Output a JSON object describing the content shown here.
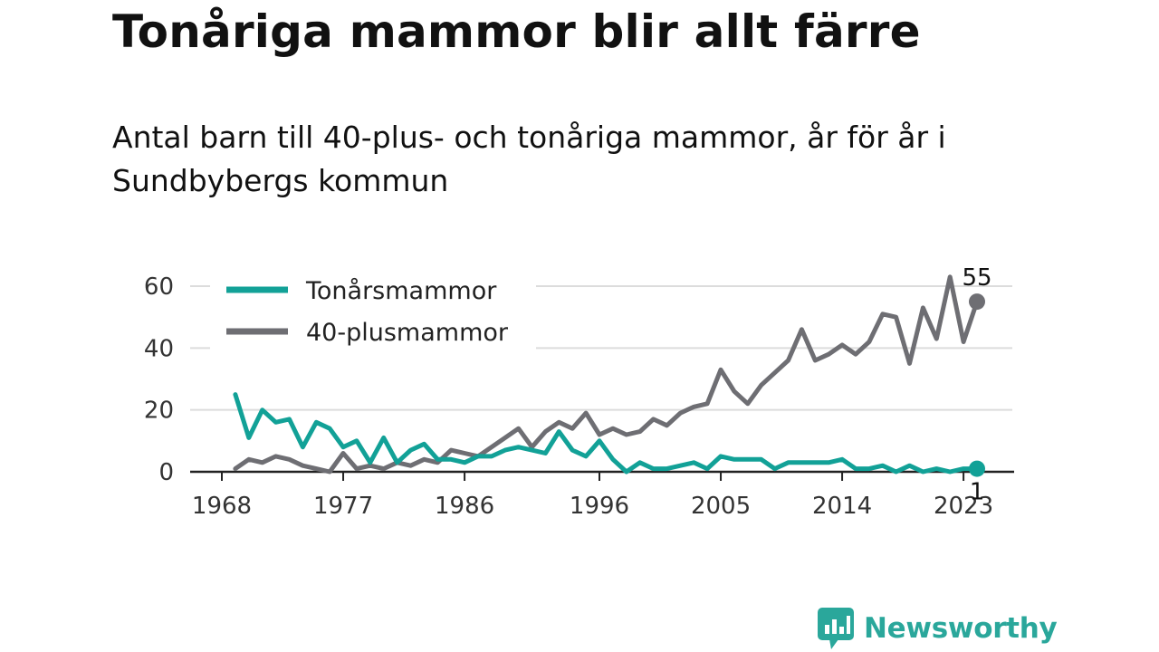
{
  "title": "Tonåriga mammor blir allt färre",
  "subtitle": "Antal barn till 40-plus- och tonåriga mammor, år för år i Sundbybergs kommun",
  "logo": {
    "text": "Newsworthy",
    "icon": "newsworthy-chart-bubble-icon",
    "color": "#2aa79b"
  },
  "chart_data": {
    "type": "line",
    "x_ticks": [
      1968,
      1977,
      1986,
      1996,
      2005,
      2014,
      2023
    ],
    "y_ticks": [
      0,
      20,
      40,
      60
    ],
    "xlim": [
      1968,
      2024
    ],
    "ylim": [
      0,
      62
    ],
    "grid": true,
    "legend_position": "top-left",
    "x": [
      1969,
      1970,
      1971,
      1972,
      1973,
      1974,
      1975,
      1976,
      1977,
      1978,
      1979,
      1980,
      1981,
      1982,
      1983,
      1984,
      1985,
      1986,
      1987,
      1988,
      1989,
      1990,
      1991,
      1992,
      1993,
      1994,
      1995,
      1996,
      1997,
      1998,
      1999,
      2000,
      2001,
      2002,
      2003,
      2004,
      2005,
      2006,
      2007,
      2008,
      2009,
      2010,
      2011,
      2012,
      2013,
      2014,
      2015,
      2016,
      2017,
      2018,
      2019,
      2020,
      2021,
      2022,
      2023,
      2024
    ],
    "series": [
      {
        "name": "Tonårsmammor",
        "color": "#12a197",
        "values": [
          25,
          11,
          20,
          16,
          17,
          8,
          16,
          14,
          8,
          10,
          3,
          11,
          3,
          7,
          9,
          4,
          4,
          3,
          5,
          5,
          7,
          8,
          7,
          6,
          13,
          7,
          5,
          10,
          4,
          0,
          3,
          1,
          1,
          2,
          3,
          1,
          5,
          4,
          4,
          4,
          1,
          3,
          3,
          3,
          3,
          4,
          1,
          1,
          2,
          0,
          2,
          0,
          1,
          0,
          1,
          1
        ],
        "end_label": "1"
      },
      {
        "name": "40-plusmammor",
        "color": "#6e6e73",
        "values": [
          1,
          4,
          3,
          5,
          4,
          2,
          1,
          0,
          6,
          1,
          2,
          1,
          3,
          2,
          4,
          3,
          7,
          6,
          5,
          8,
          11,
          14,
          8,
          13,
          16,
          14,
          19,
          12,
          14,
          12,
          13,
          17,
          15,
          19,
          21,
          22,
          33,
          26,
          22,
          28,
          32,
          36,
          46,
          36,
          38,
          41,
          38,
          42,
          51,
          50,
          35,
          53,
          43,
          63,
          42,
          55
        ],
        "end_label": "55"
      }
    ]
  }
}
